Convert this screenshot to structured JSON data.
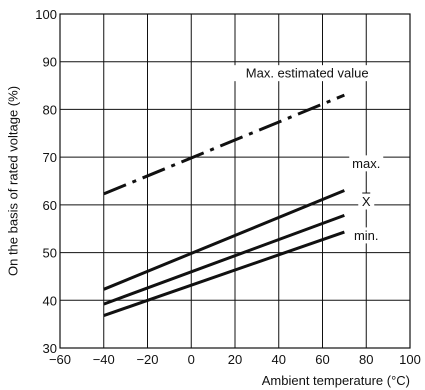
{
  "chart_data": {
    "type": "line",
    "title": "",
    "xlabel": "Ambient temperature (°C)",
    "ylabel": "On the basis of rated voltage (%)",
    "xlim": [
      -60,
      100
    ],
    "ylim": [
      30,
      100
    ],
    "x_ticks": [
      -60,
      -40,
      -20,
      0,
      20,
      40,
      60,
      80,
      100
    ],
    "x_tick_labels": [
      "−60",
      "−40",
      "−20",
      "0",
      "20",
      "40",
      "60",
      "80",
      "100"
    ],
    "y_ticks": [
      30,
      40,
      50,
      60,
      70,
      80,
      90,
      100
    ],
    "y_tick_labels": [
      "30",
      "40",
      "50",
      "60",
      "70",
      "80",
      "90",
      "100"
    ],
    "grid": true,
    "series": [
      {
        "name": "Max. estimated value",
        "style": "dash-dot",
        "x": [
          -40,
          70
        ],
        "y": [
          62.3,
          83
        ]
      },
      {
        "name": "max.",
        "style": "solid",
        "x": [
          -40,
          70
        ],
        "y": [
          42.3,
          63
        ]
      },
      {
        "name": "X",
        "style": "solid",
        "x": [
          -40,
          70
        ],
        "y": [
          39.2,
          57.8
        ]
      },
      {
        "name": "min.",
        "style": "solid",
        "x": [
          -40,
          70
        ],
        "y": [
          36.8,
          54.3
        ]
      }
    ]
  }
}
